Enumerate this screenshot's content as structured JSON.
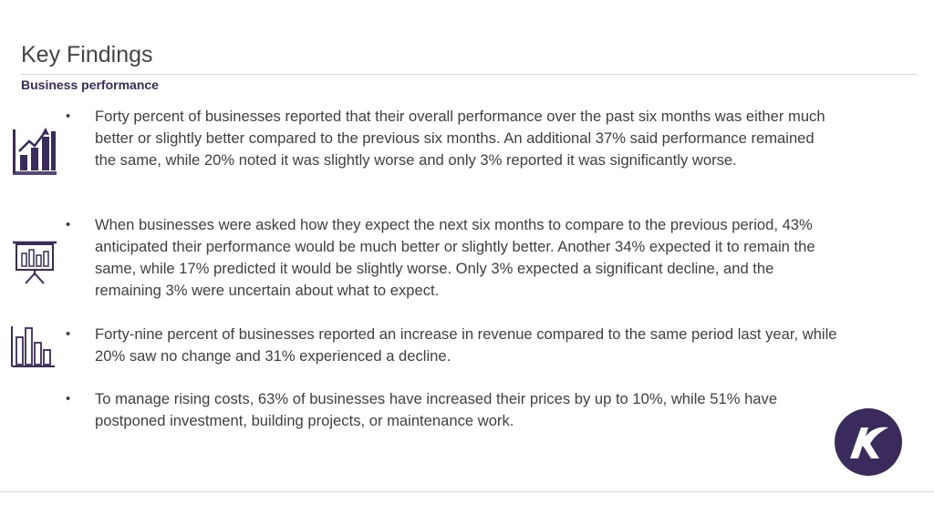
{
  "header": {
    "title": "Key Findings",
    "subtitle": "Business performance"
  },
  "icons": {
    "first": "bar-chart-growth-icon",
    "second": "presentation-board-icon",
    "third": "bar-graph-icon",
    "logo": "company-logo",
    "accent_color": "#3b2a5c"
  },
  "bullets": [
    {
      "marker": "•",
      "text": "Forty percent of businesses reported that their overall performance over the past six months was either much better or slightly better compared to the previous six months. An additional 37% said performance remained the same, while 20% noted it was slightly worse and only 3% reported it was significantly worse."
    },
    {
      "marker": "•",
      "text": "When businesses were asked how they expect the next six months to compare to the previous period, 43% anticipated their performance would be much better or slightly better. Another 34% expected it to remain the same, while 17% predicted it would be slightly worse. Only 3% expected a significant decline, and the remaining 3% were uncertain about what to expect."
    },
    {
      "marker": "•",
      "text": "Forty-nine percent of businesses reported an increase in revenue compared to the same period last year, while 20% saw no change and 31% experienced a decline."
    },
    {
      "marker": "•",
      "text": "To manage rising costs, 63% of businesses have increased their prices by up to 10%, while 51% have postponed investment, building projects, or maintenance work."
    }
  ]
}
